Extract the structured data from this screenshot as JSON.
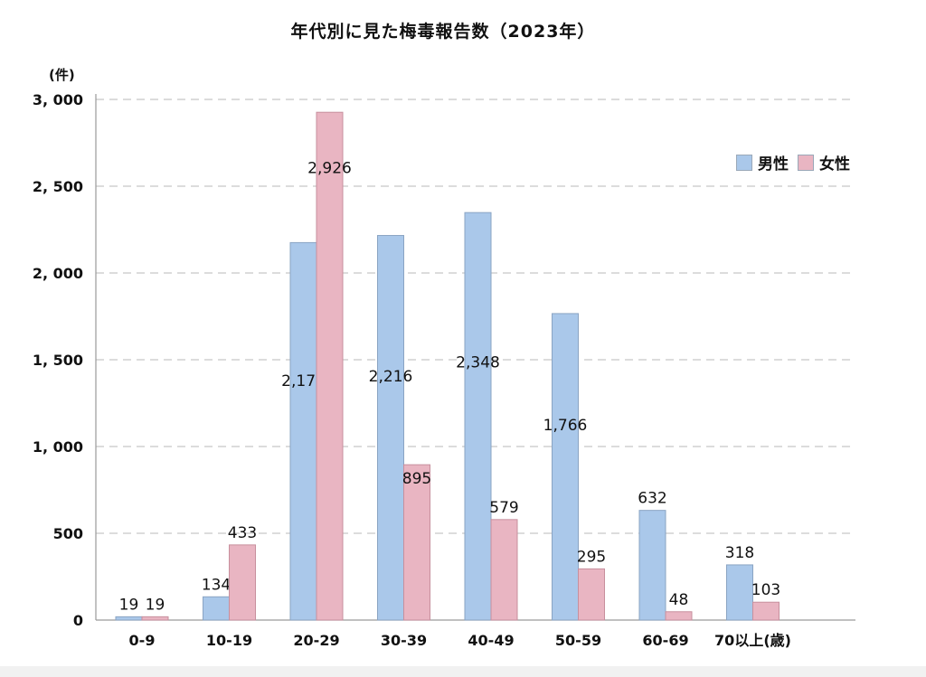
{
  "chart_data": {
    "type": "bar",
    "title": "年代別に見た梅毒報告数（2023年）",
    "ylabel": "(件)",
    "xlabel": "",
    "ylim": [
      0,
      3000
    ],
    "yticks": [
      0,
      500,
      1000,
      1500,
      2000,
      2500,
      3000
    ],
    "ytick_labels": [
      "0",
      "500",
      "1, 000",
      "1, 500",
      "2, 000",
      "2, 500",
      "3, 000"
    ],
    "grid": true,
    "legend_position": "top-right",
    "categories": [
      "0-9",
      "10-19",
      "20-29",
      "30-39",
      "40-49",
      "50-59",
      "60-69",
      "70以上(歳)"
    ],
    "series": [
      {
        "name": "男性",
        "color": "#aac8ea",
        "values": [
          19,
          134,
          2175,
          2216,
          2348,
          1766,
          632,
          318
        ],
        "labels": [
          "19",
          "134",
          "2,175",
          "2,216",
          "2,348",
          "1,766",
          "632",
          "318"
        ]
      },
      {
        "name": "女性",
        "color": "#e9b5c2",
        "values": [
          19,
          433,
          2926,
          895,
          579,
          295,
          48,
          103
        ],
        "labels": [
          "19",
          "433",
          "2,926",
          "895",
          "579",
          "295",
          "48",
          "103"
        ]
      }
    ]
  }
}
